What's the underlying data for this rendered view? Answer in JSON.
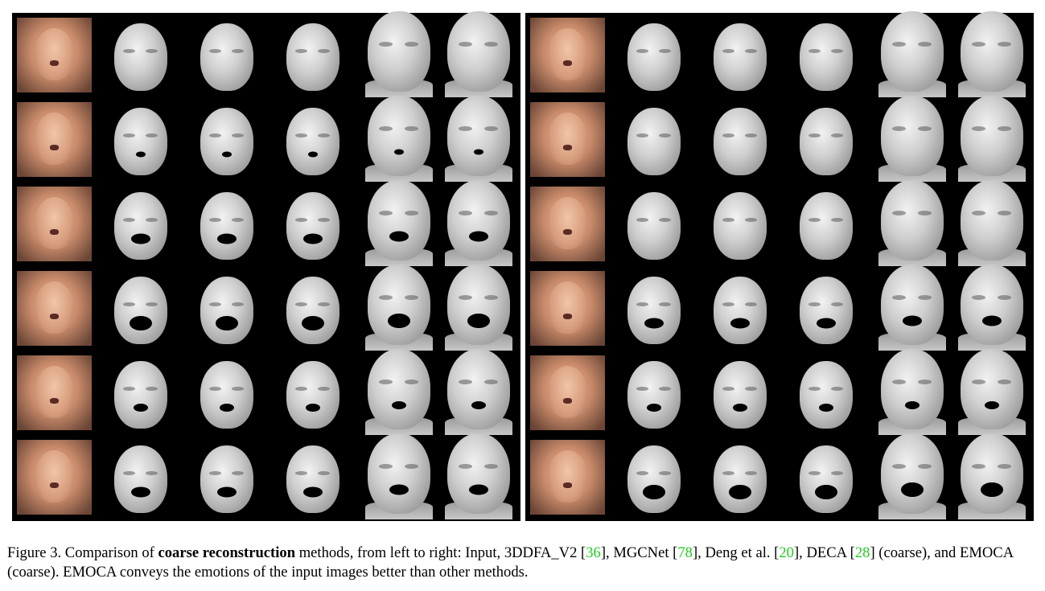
{
  "figure": {
    "panels": [
      {
        "rows": [
          {
            "mouth": "closed"
          },
          {
            "mouth": "small"
          },
          {
            "mouth": "open"
          },
          {
            "mouth": "wide"
          },
          {
            "mouth": "medium"
          },
          {
            "mouth": "open"
          }
        ]
      },
      {
        "rows": [
          {
            "mouth": "closed"
          },
          {
            "mouth": "closed"
          },
          {
            "mouth": "closed"
          },
          {
            "mouth": "open"
          },
          {
            "mouth": "medium"
          },
          {
            "mouth": "wide"
          }
        ]
      }
    ],
    "methods": [
      "Input",
      "3DDFA_V2",
      "MGCNet",
      "Deng et al.",
      "DECA (coarse)",
      "EMOCA (coarse)"
    ]
  },
  "caption": {
    "prefix": "Figure 3.  Comparison of ",
    "bold": "coarse reconstruction",
    "mid1": " methods, from left to right:  Input, 3DDFA_V2 [",
    "ref1": "36",
    "mid2": "], MGCNet [",
    "ref2": "78",
    "mid3": "], Deng et al. [",
    "ref3": "20",
    "mid4": "], DECA [",
    "ref4": "28",
    "suffix": "] (coarse), and EMOCA (coarse). EMOCA conveys the emotions of the input images better than other methods."
  },
  "colors": {
    "citation": "#22cc22",
    "panel_background": "#000000"
  }
}
